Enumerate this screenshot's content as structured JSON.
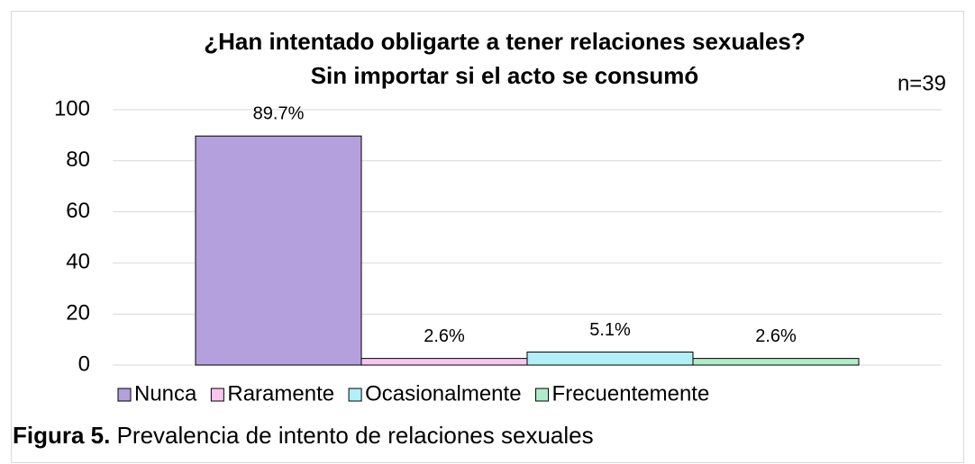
{
  "chart_data": {
    "type": "bar",
    "title": [
      "¿Han intentado obligarte a tener relaciones sexuales?",
      "Sin importar si el acto se consumó"
    ],
    "annotation": "n=39",
    "categories": [
      null
    ],
    "series": [
      {
        "name": "Nunca",
        "color": "#b3a0dc",
        "values": [
          89.7
        ],
        "value_labels": [
          "89.7%"
        ]
      },
      {
        "name": "Raramente",
        "color": "#f7c6ef",
        "values": [
          2.6
        ],
        "value_labels": [
          "2.6%"
        ]
      },
      {
        "name": "Ocasionalmente",
        "color": "#b3eff9",
        "values": [
          5.1
        ],
        "value_labels": [
          "5.1%"
        ]
      },
      {
        "name": "Frecuentemente",
        "color": "#b1ecc8",
        "values": [
          2.6
        ],
        "value_labels": [
          "2.6%"
        ]
      }
    ],
    "ylim": [
      0,
      100
    ],
    "yticks": [
      0,
      20,
      40,
      60,
      80,
      100
    ],
    "grid": true,
    "legend": "bottom"
  },
  "caption": {
    "label": "Figura 5.",
    "text": "Prevalencia de intento de relaciones sexuales"
  }
}
